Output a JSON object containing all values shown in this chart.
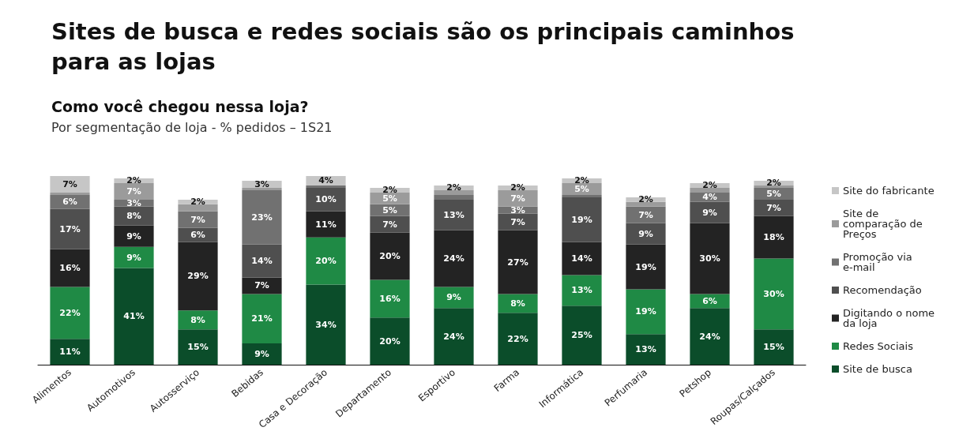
{
  "chart_data": {
    "type": "bar",
    "title": "Sites de busca e redes sociais são os principais caminhos para as lojas",
    "subtitle": "Como você chegou nessa loja?",
    "annotations": [
      "Por segmentação de loja - % pedidos – 1S21"
    ],
    "categories": [
      "Alimentos",
      "Automotivos",
      "Autosserviço",
      "Bebidas",
      "Casa e Decoração",
      "Departamento",
      "Esportivo",
      "Farma",
      "Informática",
      "Perfumaria",
      "Petshop",
      "Roupas/Calçados"
    ],
    "stacked": true,
    "legend": "right",
    "series": [
      {
        "name": "Site de busca",
        "color": "#0b4d2a",
        "values": [
          11,
          41,
          15,
          9,
          34,
          20,
          24,
          22,
          25,
          13,
          24,
          15
        ],
        "value_labels": [
          "11%",
          "41%",
          "15%",
          "9%",
          "34%",
          "20%",
          "24%",
          "22%",
          "25%",
          "13%",
          "24%",
          "15%"
        ]
      },
      {
        "name": "Redes Sociais",
        "color": "#1f8a45",
        "values": [
          22,
          9,
          8,
          21,
          20,
          16,
          9,
          8,
          13,
          19,
          6,
          30
        ],
        "value_labels": [
          "22%",
          "9%",
          "8%",
          "21%",
          "20%",
          "16%",
          "9%",
          "8%",
          "13%",
          "19%",
          "6%",
          "30%"
        ]
      },
      {
        "name": "Digitando o nome da loja",
        "color": "#232323",
        "values": [
          16,
          9,
          29,
          7,
          11,
          20,
          24,
          27,
          14,
          19,
          30,
          18
        ],
        "value_labels": [
          "16%",
          "9%",
          "29%",
          "7%",
          "11%",
          "20%",
          "24%",
          "27%",
          "14%",
          "19%",
          "30%",
          "18%"
        ]
      },
      {
        "name": "Recomendação",
        "color": "#4f4f4f",
        "values": [
          17,
          8,
          6,
          14,
          10,
          7,
          13,
          7,
          19,
          9,
          9,
          7
        ],
        "value_labels": [
          "17%",
          "8%",
          "6%",
          "14%",
          "10%",
          "7%",
          "13%",
          "7%",
          "19%",
          "9%",
          "9%",
          "7%"
        ]
      },
      {
        "name": "Promoção via e-mail",
        "color": "#717171",
        "values": [
          6,
          3,
          7,
          23,
          1,
          5,
          2,
          3,
          1,
          7,
          4,
          5
        ],
        "value_labels": [
          "6%",
          "3%",
          "7%",
          "23%",
          null,
          "5%",
          null,
          "3%",
          null,
          "7%",
          "4%",
          "5%"
        ]
      },
      {
        "name": "Site de comparação de Preços",
        "color": "#9b9b9b",
        "values": [
          1,
          7,
          3,
          1,
          null,
          5,
          2,
          7,
          5,
          2,
          2,
          1
        ],
        "value_labels": [
          null,
          "7%",
          null,
          null,
          null,
          "5%",
          null,
          "7%",
          "5%",
          null,
          null,
          null
        ]
      },
      {
        "name": "Site do fabricante",
        "color": "#c6c6c6",
        "values": [
          7,
          2,
          2,
          3,
          4,
          2,
          2,
          2,
          2,
          2,
          2,
          2
        ],
        "value_labels": [
          "7%",
          "2%",
          "2%",
          "3%",
          "4%",
          "2%",
          "2%",
          "2%",
          "2%",
          "2%",
          "2%",
          "2%"
        ]
      }
    ]
  }
}
